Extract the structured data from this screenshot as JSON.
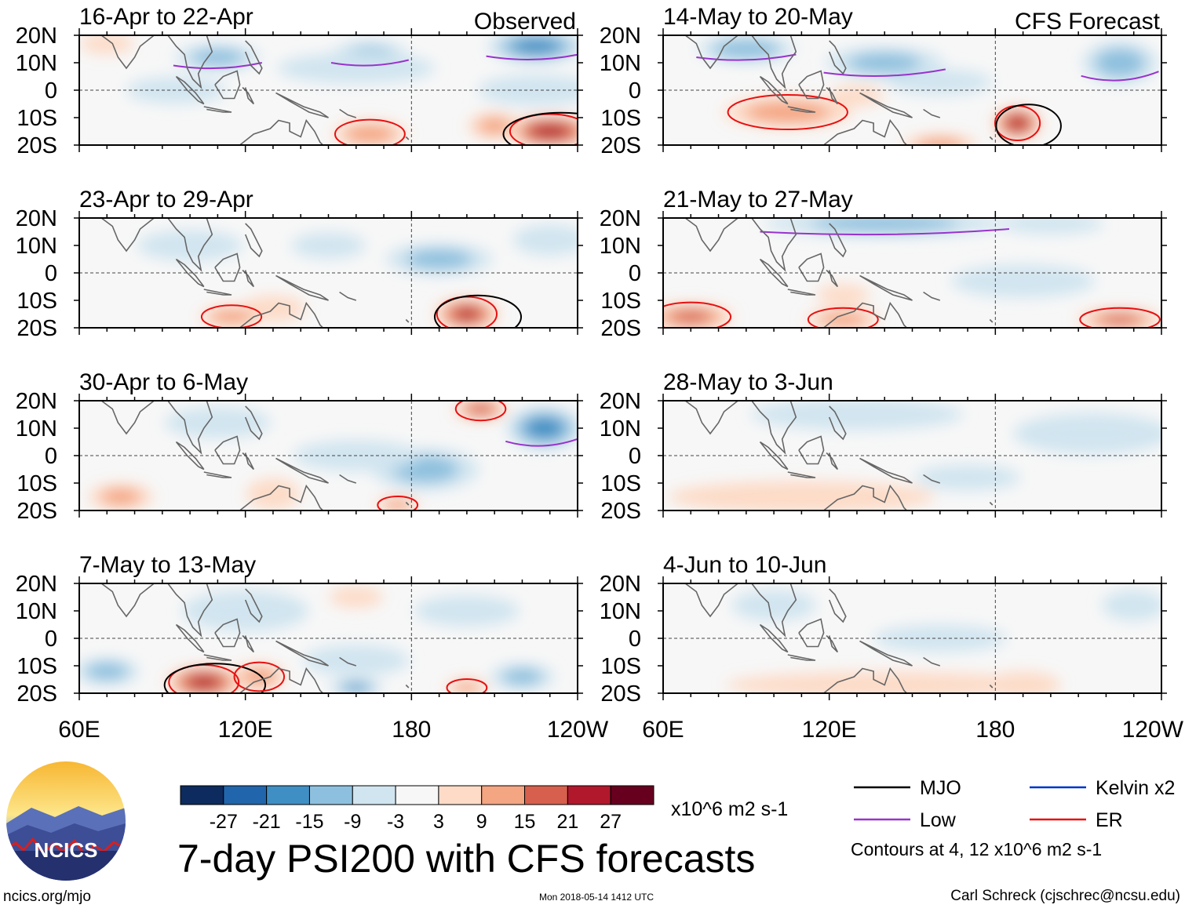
{
  "chart_data": {
    "type": "heatmap",
    "title": "7-day PSI200 with CFS forecasts",
    "variable": "PSI200",
    "units": "x10^6 m2 s-1",
    "x_ticks": [
      "60E",
      "120E",
      "180",
      "120W"
    ],
    "x_tick_values": [
      60,
      120,
      180,
      240
    ],
    "xlim": [
      60,
      240
    ],
    "y_ticks": [
      "20N",
      "10N",
      "0",
      "10S",
      "20S"
    ],
    "y_tick_values": [
      20,
      10,
      0,
      -10,
      -20
    ],
    "ylim": [
      -20,
      20
    ],
    "color_scale": {
      "labels": [
        "-27",
        "-21",
        "-15",
        "-9",
        "-3",
        "3",
        "9",
        "15",
        "21",
        "27"
      ],
      "colors": [
        "#0d2b5e",
        "#2166ac",
        "#3f8fc4",
        "#8dc0de",
        "#d1e5f0",
        "#f7f7f7",
        "#fddbc7",
        "#f4a582",
        "#d6604d",
        "#b2182b",
        "#67001f"
      ]
    },
    "contour_legend": [
      {
        "label": "MJO",
        "color": "#000000"
      },
      {
        "label": "Kelvin x2",
        "color": "#0033cc"
      },
      {
        "label": "Low",
        "color": "#9933cc"
      },
      {
        "label": "ER",
        "color": "#e81010"
      }
    ],
    "contour_note": "Contours at 4, 12 x10^6 m2 s-1",
    "columns": [
      {
        "label": "Observed",
        "panels": [
          {
            "period": "16-Apr to 22-Apr",
            "blobs": [
              [
                225,
                16,
                18,
                6,
                -18
              ],
              [
                165,
                13,
                14,
                5,
                -9
              ],
              [
                110,
                12,
                16,
                5,
                -9
              ],
              [
                160,
                8,
                30,
                6,
                -4
              ],
              [
                230,
                -15,
                16,
                6,
                27
              ],
              [
                165,
                -16,
                14,
                5,
                13
              ],
              [
                210,
                -13,
                10,
                5,
                10
              ],
              [
                70,
                17,
                10,
                4,
                6
              ],
              [
                95,
                0,
                18,
                5,
                -3
              ],
              [
                225,
                0,
                22,
                6,
                -6
              ]
            ]
          },
          {
            "period": "23-Apr to 29-Apr",
            "blobs": [
              [
                200,
                -15,
                12,
                6,
                22
              ],
              [
                130,
                -13,
                12,
                5,
                9
              ],
              [
                115,
                -16,
                12,
                4,
                13
              ],
              [
                190,
                5,
                20,
                6,
                -9
              ],
              [
                100,
                10,
                20,
                6,
                -4
              ],
              [
                150,
                10,
                14,
                5,
                -6
              ],
              [
                230,
                12,
                14,
                6,
                -4
              ]
            ]
          },
          {
            "period": "30-Apr to 6-May",
            "blobs": [
              [
                228,
                10,
                14,
                8,
                -18
              ],
              [
                205,
                17,
                10,
                4,
                19
              ],
              [
                175,
                -18,
                8,
                3,
                14
              ],
              [
                75,
                -15,
                12,
                5,
                10
              ],
              [
                130,
                -14,
                10,
                6,
                9
              ],
              [
                185,
                -5,
                20,
                8,
                -9
              ],
              [
                110,
                12,
                20,
                6,
                -6
              ],
              [
                160,
                0,
                24,
                6,
                -4
              ]
            ]
          },
          {
            "period": "7-May to 13-May",
            "blobs": [
              [
                105,
                -16,
                14,
                6,
                25
              ],
              [
                125,
                -14,
                10,
                5,
                12
              ],
              [
                160,
                15,
                10,
                4,
                9
              ],
              [
                200,
                -18,
                8,
                3,
                13
              ],
              [
                160,
                -18,
                10,
                3,
                -15
              ],
              [
                70,
                -12,
                12,
                5,
                -12
              ],
              [
                160,
                -8,
                20,
                6,
                -6
              ],
              [
                220,
                -14,
                12,
                5,
                -9
              ],
              [
                120,
                10,
                24,
                8,
                -4
              ],
              [
                200,
                10,
                20,
                6,
                -4
              ]
            ]
          }
        ]
      },
      {
        "label": "CFS Forecast",
        "panels": [
          {
            "period": "14-May to 20-May",
            "blobs": [
              [
                188,
                -12,
                9,
                6,
                26
              ],
              [
                105,
                -8,
                24,
                6,
                12
              ],
              [
                160,
                -20,
                14,
                4,
                11
              ],
              [
                90,
                15,
                18,
                5,
                -14
              ],
              [
                140,
                10,
                22,
                6,
                -9
              ],
              [
                225,
                10,
                14,
                8,
                -12
              ],
              [
                160,
                3,
                20,
                5,
                -4
              ],
              [
                130,
                -2,
                10,
                4,
                6
              ]
            ]
          },
          {
            "period": "21-May to 27-May",
            "blobs": [
              [
                70,
                -16,
                16,
                5,
                16
              ],
              [
                125,
                -17,
                14,
                4,
                12
              ],
              [
                225,
                -17,
                16,
                4,
                16
              ],
              [
                140,
                18,
                45,
                5,
                -10
              ],
              [
                200,
                18,
                20,
                4,
                -6
              ],
              [
                190,
                -3,
                26,
                6,
                -3
              ],
              [
                125,
                -8,
                10,
                4,
                5
              ]
            ]
          },
          {
            "period": "28-May to 3-Jun",
            "blobs": [
              [
                110,
                -15,
                50,
                6,
                7
              ],
              [
                130,
                15,
                40,
                6,
                -6
              ],
              [
                215,
                8,
                30,
                8,
                -4
              ],
              [
                170,
                -8,
                20,
                5,
                -4
              ]
            ]
          },
          {
            "period": "4-Jun to 10-Jun",
            "blobs": [
              [
                140,
                -17,
                60,
                5,
                6
              ],
              [
                190,
                -17,
                14,
                5,
                8
              ],
              [
                100,
                12,
                16,
                6,
                -4
              ],
              [
                230,
                12,
                12,
                6,
                -4
              ],
              [
                160,
                0,
                24,
                5,
                -3
              ]
            ]
          }
        ]
      }
    ]
  },
  "footer": {
    "logo_text": "NCICS",
    "site": "ncics.org/mjo",
    "timestamp": "Mon 2018-05-14 1412 UTC",
    "credit": "Carl Schreck (cjschrec@ncsu.edu)"
  }
}
